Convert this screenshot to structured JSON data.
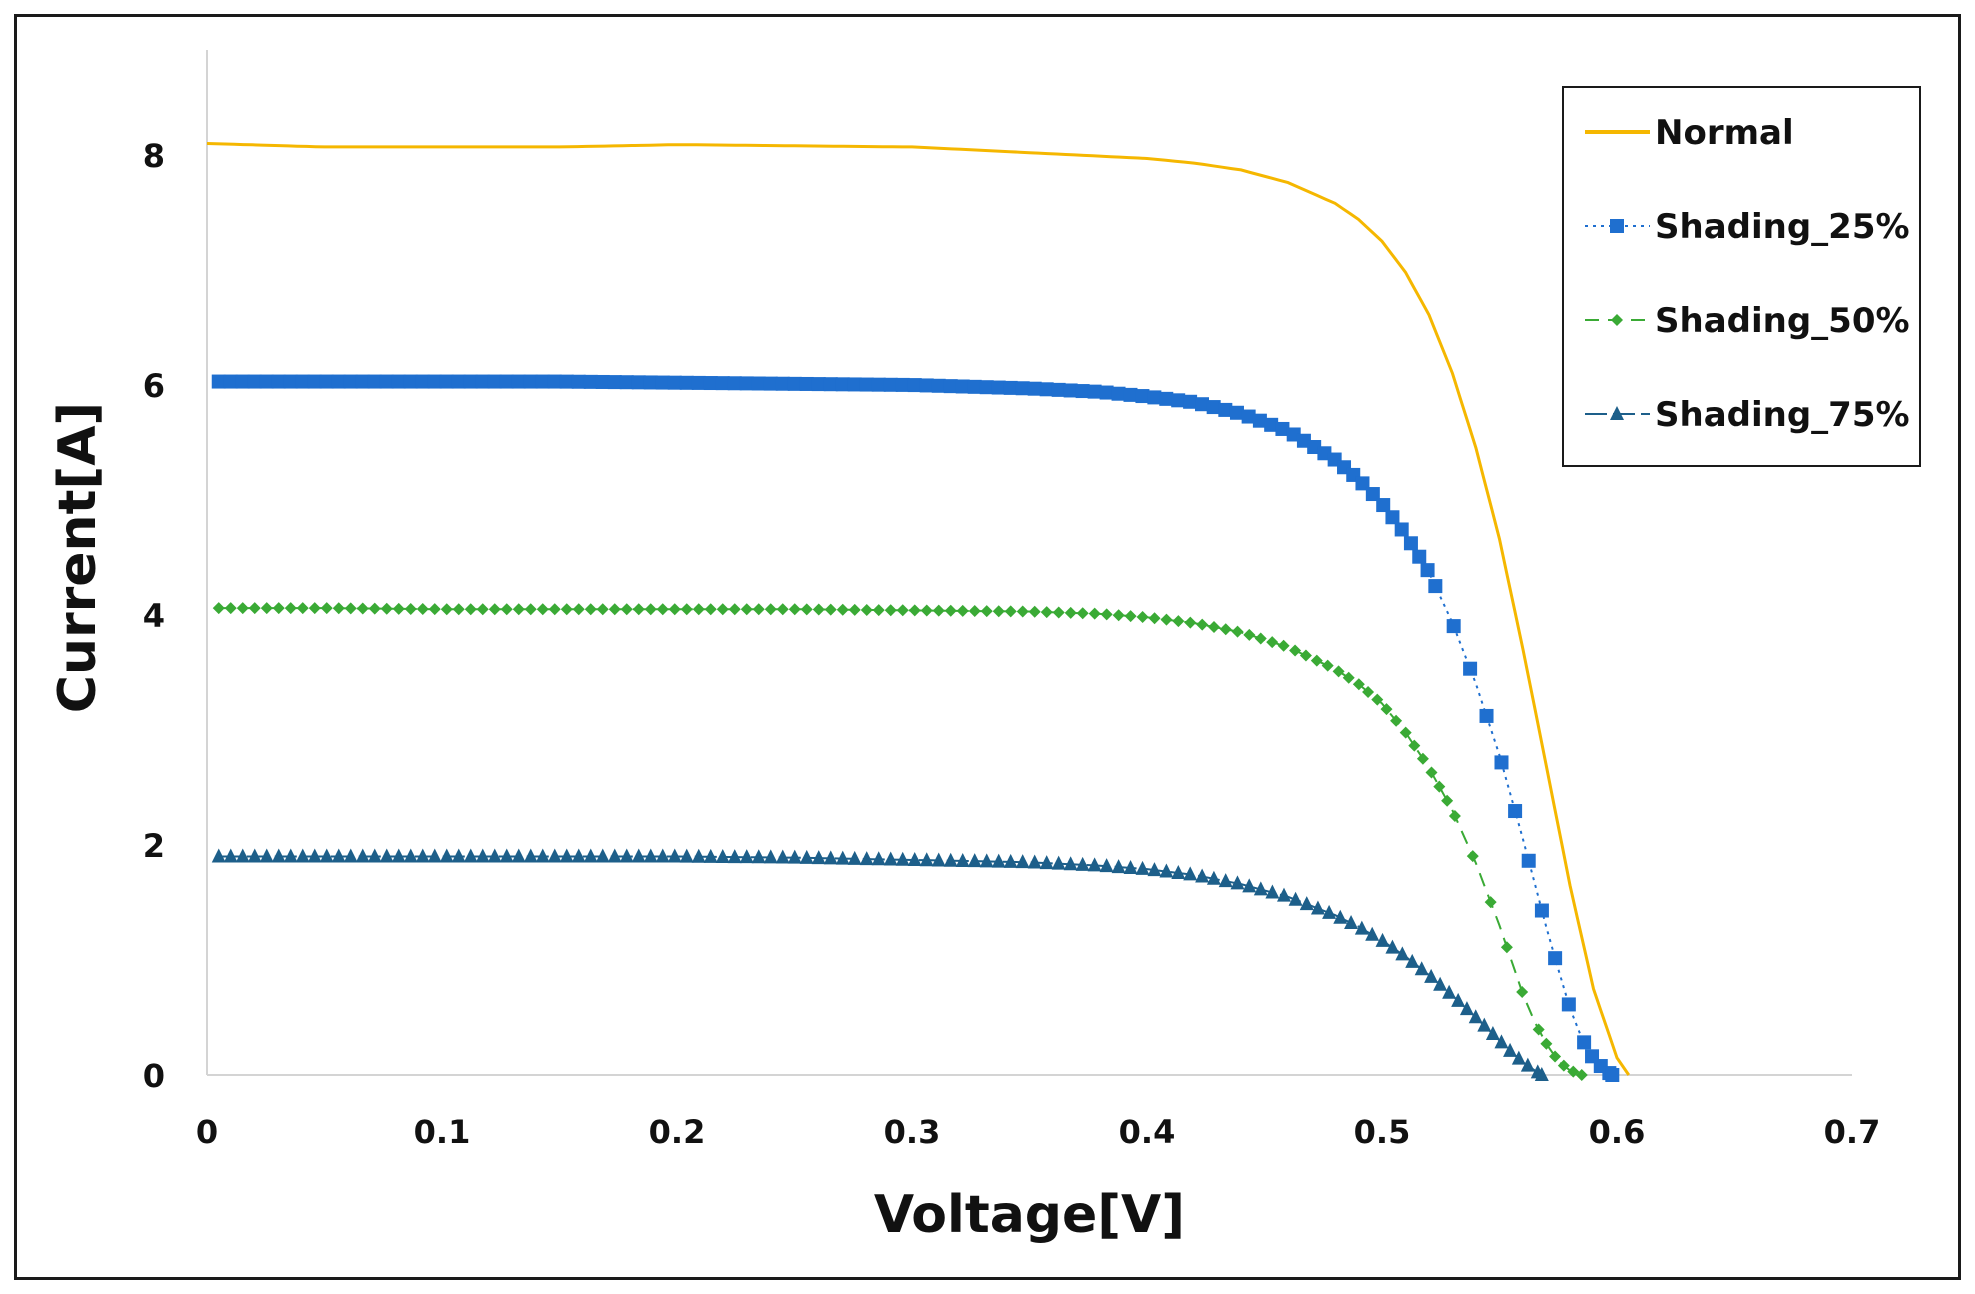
{
  "chart_data": {
    "type": "line",
    "title": "",
    "xlabel": "Voltage[V]",
    "ylabel": "Current[A]",
    "xlim": [
      0,
      0.7
    ],
    "ylim": [
      0,
      9
    ],
    "xticks": [
      "0",
      "0.1",
      "0.2",
      "0.3",
      "0.4",
      "0.5",
      "0.6",
      "0.7"
    ],
    "xtick_values": [
      0,
      0.1,
      0.2,
      0.3,
      0.4,
      0.5,
      0.6,
      0.7
    ],
    "yticks": [
      "0",
      "2",
      "4",
      "6",
      "8"
    ],
    "ytick_values": [
      0,
      2,
      4,
      6,
      8
    ],
    "grid": false,
    "legend_position": "top-right",
    "series": [
      {
        "name": "Normal",
        "color": "#f5b700",
        "dash": "solid",
        "marker": "none",
        "x": [
          0,
          0.05,
          0.1,
          0.15,
          0.2,
          0.25,
          0.3,
          0.35,
          0.4,
          0.42,
          0.44,
          0.46,
          0.48,
          0.49,
          0.5,
          0.51,
          0.52,
          0.53,
          0.54,
          0.55,
          0.56,
          0.57,
          0.58,
          0.59,
          0.6,
          0.605
        ],
        "y": [
          8.1,
          8.07,
          8.07,
          8.07,
          8.09,
          8.08,
          8.07,
          8.02,
          7.97,
          7.93,
          7.87,
          7.76,
          7.58,
          7.44,
          7.25,
          6.98,
          6.61,
          6.1,
          5.45,
          4.66,
          3.7,
          2.68,
          1.65,
          0.75,
          0.15,
          0.0
        ]
      },
      {
        "name": "Shading_25%",
        "color": "#1f6fcf",
        "dash": "dotted",
        "marker": "square",
        "x": [
          0.005,
          0.05,
          0.1,
          0.15,
          0.2,
          0.25,
          0.3,
          0.35,
          0.38,
          0.4,
          0.42,
          0.44,
          0.46,
          0.48,
          0.49,
          0.5,
          0.51,
          0.52,
          0.53,
          0.54,
          0.55,
          0.56,
          0.57,
          0.575,
          0.58,
          0.585,
          0.59,
          0.595,
          0.598
        ],
        "y": [
          6.03,
          6.03,
          6.03,
          6.03,
          6.02,
          6.01,
          6.0,
          5.97,
          5.94,
          5.9,
          5.85,
          5.75,
          5.6,
          5.35,
          5.18,
          4.97,
          4.7,
          4.37,
          3.93,
          3.4,
          2.78,
          2.05,
          1.28,
          0.92,
          0.58,
          0.32,
          0.14,
          0.04,
          0.0
        ]
      },
      {
        "name": "Shading_50%",
        "color": "#3aaa35",
        "dash": "dashed",
        "marker": "diamond",
        "x": [
          0.005,
          0.05,
          0.1,
          0.15,
          0.2,
          0.25,
          0.3,
          0.35,
          0.38,
          0.4,
          0.42,
          0.44,
          0.46,
          0.48,
          0.49,
          0.5,
          0.51,
          0.52,
          0.53,
          0.54,
          0.55,
          0.56,
          0.565,
          0.57,
          0.575,
          0.58,
          0.585
        ],
        "y": [
          4.06,
          4.06,
          4.05,
          4.05,
          4.05,
          4.05,
          4.04,
          4.03,
          4.01,
          3.98,
          3.93,
          3.85,
          3.72,
          3.53,
          3.4,
          3.23,
          2.98,
          2.67,
          2.3,
          1.84,
          1.3,
          0.7,
          0.46,
          0.27,
          0.12,
          0.04,
          0.0
        ]
      },
      {
        "name": "Shading_75%",
        "color": "#1d5f8a",
        "dash": "longdash",
        "marker": "triangle",
        "x": [
          0.005,
          0.05,
          0.1,
          0.15,
          0.2,
          0.25,
          0.3,
          0.35,
          0.38,
          0.4,
          0.42,
          0.44,
          0.46,
          0.48,
          0.49,
          0.5,
          0.51,
          0.52,
          0.53,
          0.54,
          0.55,
          0.555,
          0.56,
          0.565,
          0.568
        ],
        "y": [
          1.9,
          1.9,
          1.9,
          1.9,
          1.9,
          1.89,
          1.87,
          1.85,
          1.82,
          1.79,
          1.74,
          1.66,
          1.55,
          1.39,
          1.29,
          1.17,
          1.03,
          0.87,
          0.69,
          0.5,
          0.3,
          0.2,
          0.11,
          0.04,
          0.0
        ]
      }
    ]
  }
}
